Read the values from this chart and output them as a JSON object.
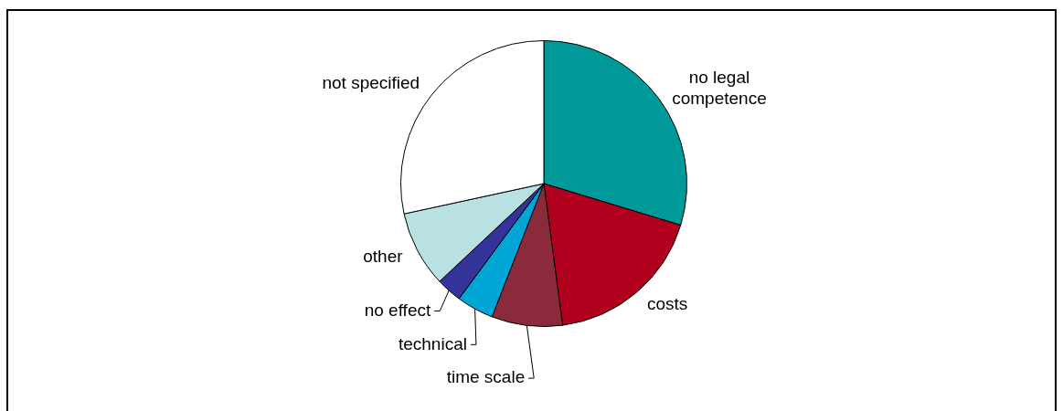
{
  "chart_data": {
    "type": "pie",
    "categories": [
      "no legal competence",
      "costs",
      "time scale",
      "technical",
      "no effect",
      "other",
      "not specified"
    ],
    "values": [
      29.7,
      18.2,
      8.0,
      4.2,
      2.9,
      8.6,
      28.4
    ],
    "colors": [
      "#009999",
      "#b0001e",
      "#8b2a3a",
      "#00a6d6",
      "#333399",
      "#b9e0e3",
      "#ffffff"
    ]
  }
}
